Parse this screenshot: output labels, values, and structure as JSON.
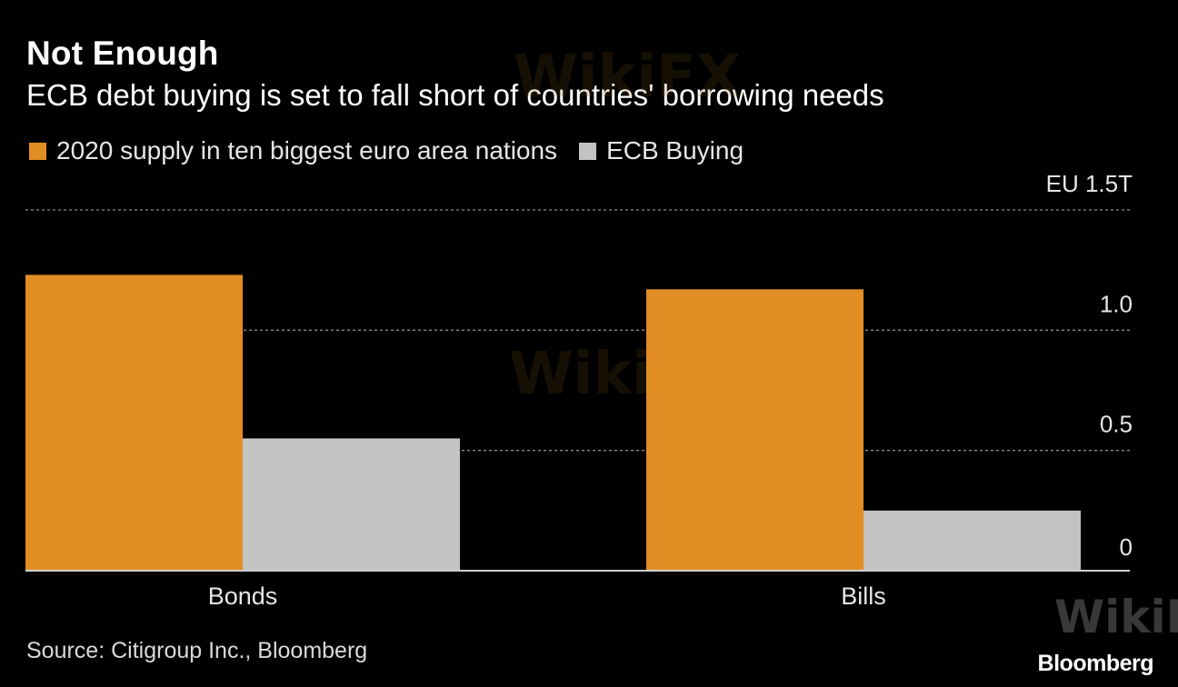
{
  "colors": {
    "background": "#000000",
    "supply": "#E28E24",
    "ecb": "#C3C3C3",
    "grid": "#8a8a8a",
    "axis": "#cfcfcf",
    "text": "#ffffff"
  },
  "chart_data": {
    "type": "bar",
    "title": "Not Enough",
    "subtitle": "ECB debt buying is set to fall short of countries' borrowing needs",
    "categories": [
      "Bonds",
      "Bills"
    ],
    "series": [
      {
        "name": "2020 supply in ten biggest euro area nations",
        "values": [
          1.23,
          1.17
        ]
      },
      {
        "name": "ECB Buying",
        "values": [
          0.55,
          0.25
        ]
      }
    ],
    "ylim": [
      0,
      1.5
    ],
    "yticks": [
      {
        "value": 0,
        "label": "0"
      },
      {
        "value": 0.5,
        "label": "0.5"
      },
      {
        "value": 1.0,
        "label": "1.0"
      },
      {
        "value": 1.5,
        "label": "EU 1.5T"
      }
    ],
    "legend_position": "top-left",
    "grid": true
  },
  "footer": {
    "source": "Source: Citigroup Inc., Bloomberg",
    "brand": "Bloomberg"
  },
  "watermark": "WikiFX"
}
